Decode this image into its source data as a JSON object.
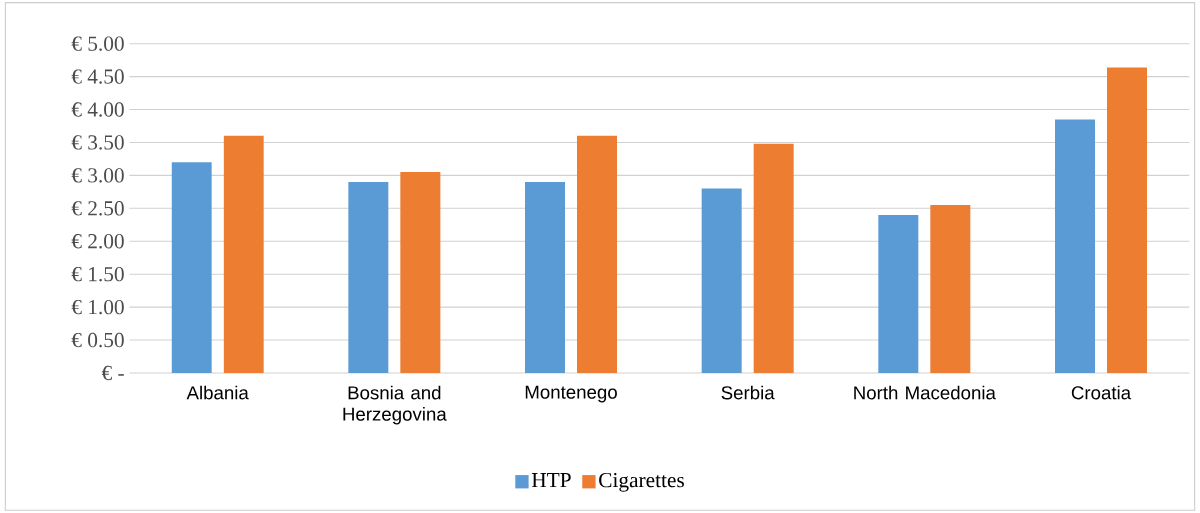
{
  "chart_data": {
    "type": "bar",
    "categories": [
      "Albania",
      "Bosnia and Herzegovina",
      "Montenego",
      "Serbia",
      "North Macedonia",
      "Croatia"
    ],
    "series": [
      {
        "name": "HTP",
        "color": "#5b9bd5",
        "values": [
          3.2,
          2.9,
          2.9,
          2.8,
          2.4,
          3.85
        ]
      },
      {
        "name": "Cigarettes",
        "color": "#ed7d31",
        "values": [
          3.6,
          3.05,
          3.6,
          3.48,
          2.55,
          4.64
        ]
      }
    ],
    "ylim": [
      0,
      5
    ],
    "yticks": [
      {
        "value": 0,
        "label": "€ -"
      },
      {
        "value": 0.5,
        "label": "€ 0.50"
      },
      {
        "value": 1,
        "label": "€ 1.00"
      },
      {
        "value": 1.5,
        "label": "€ 1.50"
      },
      {
        "value": 2,
        "label": "€ 2.00"
      },
      {
        "value": 2.5,
        "label": "€ 2.50"
      },
      {
        "value": 3,
        "label": "€ 3.00"
      },
      {
        "value": 3.5,
        "label": "€ 3.50"
      },
      {
        "value": 4,
        "label": "€ 4.00"
      },
      {
        "value": 4.5,
        "label": "€ 4.50"
      },
      {
        "value": 5,
        "label": "€ 5.00"
      }
    ],
    "grid": "y",
    "legend": "bottom"
  }
}
